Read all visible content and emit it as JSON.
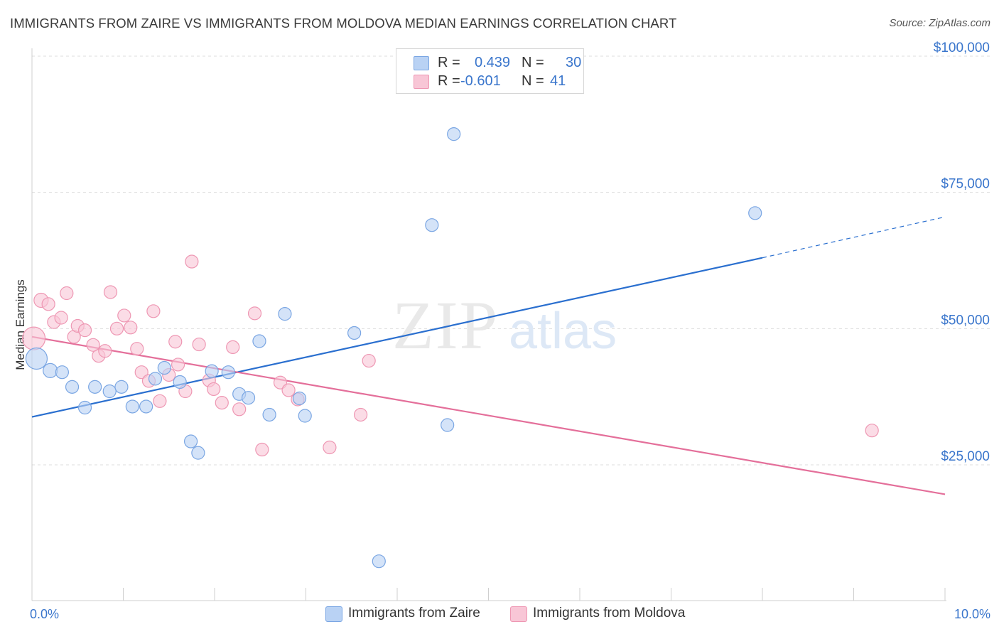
{
  "title": "IMMIGRANTS FROM ZAIRE VS IMMIGRANTS FROM MOLDOVA MEDIAN EARNINGS CORRELATION CHART",
  "source": "Source: ZipAtlas.com",
  "watermark": {
    "zip": "ZIP",
    "atlas": "atlas"
  },
  "legend": {
    "rows": [
      {
        "r_label": "R =",
        "r_value": "0.439",
        "n_label": "N =",
        "n_value": "30"
      },
      {
        "r_label": "R =",
        "r_value": "-0.601",
        "n_label": "N =",
        "n_value": "41"
      }
    ]
  },
  "bottom_legend": {
    "zaire": "Immigrants from Zaire",
    "moldova": "Immigrants from Moldova"
  },
  "colors": {
    "zaire_fill": "#b9d2f4",
    "zaire_stroke": "#7aa6e3",
    "zaire_line": "#2a6fcf",
    "moldova_fill": "#f8c6d6",
    "moldova_stroke": "#ee97b3",
    "moldova_line": "#e46f9a",
    "axis_text": "#3a76cc",
    "grid": "#dddddd"
  },
  "chart_data": {
    "type": "scatter",
    "title": "IMMIGRANTS FROM ZAIRE VS IMMIGRANTS FROM MOLDOVA MEDIAN EARNINGS CORRELATION CHART",
    "xlabel": "",
    "ylabel": "Median Earnings",
    "xlim": [
      0,
      10
    ],
    "ylim": [
      0,
      103000
    ],
    "x_tick_labels": [
      {
        "value": 0,
        "label": "0.0%"
      },
      {
        "value": 10,
        "label": "10.0%"
      }
    ],
    "y_ticks": [
      {
        "value": 25000,
        "label": "$25,000"
      },
      {
        "value": 50000,
        "label": "$50,000"
      },
      {
        "value": 75000,
        "label": "$75,000"
      },
      {
        "value": 100000,
        "label": "$100,000"
      }
    ],
    "series": [
      {
        "name": "Immigrants from Zaire",
        "r": 0.439,
        "n": 30,
        "trend": {
          "x0": 0,
          "y0": 33800,
          "x1": 8.0,
          "y1": 63000,
          "dash_to_x": 10,
          "dash_to_y": 70500
        },
        "points": [
          [
            0.05,
            44500,
            15
          ],
          [
            0.2,
            42300,
            10
          ],
          [
            0.33,
            42000,
            9
          ],
          [
            0.44,
            39300,
            9
          ],
          [
            0.58,
            35500,
            9
          ],
          [
            0.69,
            39300,
            9
          ],
          [
            0.85,
            38500,
            9
          ],
          [
            0.98,
            39300,
            9
          ],
          [
            1.1,
            35700,
            9
          ],
          [
            1.25,
            35700,
            9
          ],
          [
            1.35,
            40800,
            9
          ],
          [
            1.45,
            42800,
            9
          ],
          [
            1.62,
            40200,
            9
          ],
          [
            1.74,
            29300,
            9
          ],
          [
            1.82,
            27200,
            9
          ],
          [
            1.97,
            42200,
            9
          ],
          [
            2.15,
            42000,
            9
          ],
          [
            2.27,
            38000,
            9
          ],
          [
            2.37,
            37300,
            9
          ],
          [
            2.49,
            47700,
            9
          ],
          [
            2.6,
            34200,
            9
          ],
          [
            2.77,
            52700,
            9
          ],
          [
            2.93,
            37200,
            9
          ],
          [
            2.99,
            34000,
            9
          ],
          [
            3.53,
            49200,
            9
          ],
          [
            3.8,
            7300,
            9
          ],
          [
            4.38,
            69000,
            9
          ],
          [
            4.55,
            32300,
            9
          ],
          [
            4.62,
            85700,
            9
          ],
          [
            7.92,
            71200,
            9
          ]
        ]
      },
      {
        "name": "Immigrants from Moldova",
        "r": -0.601,
        "n": 41,
        "trend": {
          "x0": 0,
          "y0": 48500,
          "x1": 10,
          "y1": 19600
        },
        "points": [
          [
            0.02,
            48200,
            16
          ],
          [
            0.1,
            55200,
            10
          ],
          [
            0.18,
            54500,
            9
          ],
          [
            0.24,
            51200,
            9
          ],
          [
            0.32,
            52000,
            9
          ],
          [
            0.38,
            56500,
            9
          ],
          [
            0.46,
            48500,
            9
          ],
          [
            0.5,
            50500,
            9
          ],
          [
            0.58,
            49700,
            9
          ],
          [
            0.67,
            47000,
            9
          ],
          [
            0.73,
            45000,
            9
          ],
          [
            0.8,
            45900,
            9
          ],
          [
            0.86,
            56700,
            9
          ],
          [
            0.93,
            50000,
            9
          ],
          [
            1.01,
            52400,
            9
          ],
          [
            1.08,
            50200,
            9
          ],
          [
            1.15,
            46300,
            9
          ],
          [
            1.2,
            42000,
            9
          ],
          [
            1.28,
            40400,
            9
          ],
          [
            1.33,
            53200,
            9
          ],
          [
            1.4,
            36700,
            9
          ],
          [
            1.5,
            41500,
            9
          ],
          [
            1.57,
            47600,
            9
          ],
          [
            1.6,
            43400,
            9
          ],
          [
            1.68,
            38500,
            9
          ],
          [
            1.75,
            62300,
            9
          ],
          [
            1.83,
            47100,
            9
          ],
          [
            1.94,
            40500,
            9
          ],
          [
            1.99,
            38900,
            9
          ],
          [
            2.08,
            36400,
            9
          ],
          [
            2.2,
            46600,
            9
          ],
          [
            2.27,
            35200,
            9
          ],
          [
            2.44,
            52800,
            9
          ],
          [
            2.52,
            27800,
            9
          ],
          [
            2.72,
            40100,
            9
          ],
          [
            2.81,
            38700,
            9
          ],
          [
            2.91,
            37000,
            9
          ],
          [
            3.26,
            28200,
            9
          ],
          [
            3.6,
            34200,
            9
          ],
          [
            3.69,
            44100,
            9
          ],
          [
            9.2,
            31300,
            9
          ]
        ]
      }
    ]
  }
}
